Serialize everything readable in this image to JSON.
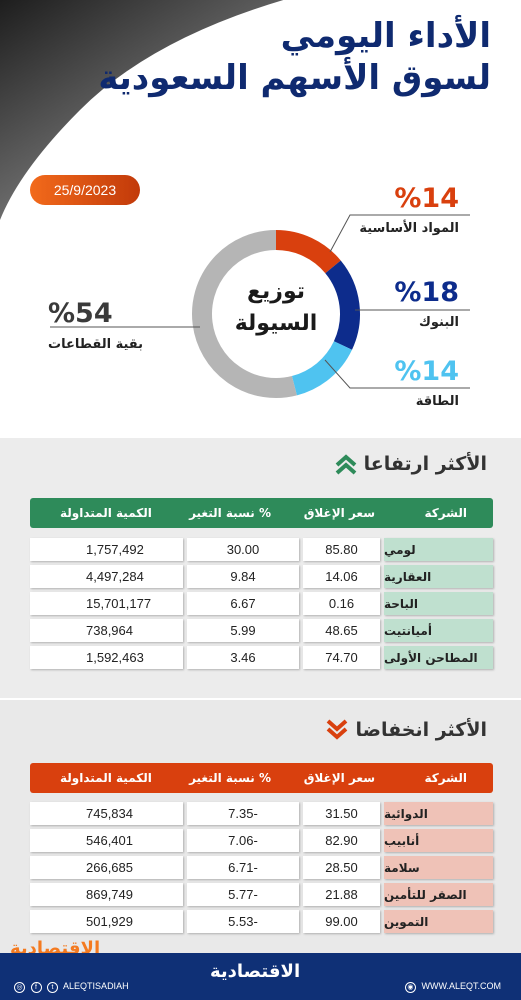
{
  "header": {
    "title_line1": "الأداء اليومي",
    "title_line2": "لسوق الأسهم السعودية",
    "date": "25/9/2023"
  },
  "distribution": {
    "center_line1": "توزيع",
    "center_line2": "السيولة",
    "segments": [
      {
        "label": "المواد الأساسية",
        "pct": "%14",
        "color": "#d9400e"
      },
      {
        "label": "البنوك",
        "pct": "%18",
        "color": "#0d2c8c"
      },
      {
        "label": "الطاقة",
        "pct": "%14",
        "color": "#4fc3f0"
      },
      {
        "label": "بقية القطاعات",
        "pct": "%54",
        "color": "#b5b5b5"
      }
    ]
  },
  "gainers": {
    "title": "الأكثر ارتفاعا",
    "header_color": "#2e8b5a",
    "columns": {
      "company": "الشركة",
      "close": "سعر الإغلاق",
      "change": "نسبة التغير %",
      "volume": "الكمية المتداولة"
    },
    "rows": [
      {
        "company": "لومي",
        "close": "85.80",
        "change": "30.00",
        "volume": "1,757,492"
      },
      {
        "company": "العقارية",
        "close": "14.06",
        "change": "9.84",
        "volume": "4,497,284"
      },
      {
        "company": "الباحة",
        "close": "0.16",
        "change": "6.67",
        "volume": "15,701,177"
      },
      {
        "company": "أميانتيت",
        "close": "48.65",
        "change": "5.99",
        "volume": "738,964"
      },
      {
        "company": "المطاحن الأولى",
        "close": "74.70",
        "change": "3.46",
        "volume": "1,592,463"
      }
    ]
  },
  "losers": {
    "title": "الأكثر انخفاضا",
    "header_color": "#d9400e",
    "columns": {
      "company": "الشركة",
      "close": "سعر الإغلاق",
      "change": "نسبة التغير %",
      "volume": "الكمية المتداولة"
    },
    "rows": [
      {
        "company": "الدوائية",
        "close": "31.50",
        "change": "7.35-",
        "volume": "745,834"
      },
      {
        "company": "أنابيب",
        "close": "82.90",
        "change": "7.06-",
        "volume": "546,401"
      },
      {
        "company": "سلامة",
        "close": "28.50",
        "change": "6.71-",
        "volume": "266,685"
      },
      {
        "company": "الصقر للتأمين",
        "close": "21.88",
        "change": "5.77-",
        "volume": "869,749"
      },
      {
        "company": "التموين",
        "close": "99.00",
        "change": "5.53-",
        "volume": "501,929"
      }
    ]
  },
  "footer": {
    "brand": "الاقتصادية",
    "social_handle": "ALEQTISADIAH",
    "website": "WWW.ALEQT.COM",
    "watermark": "الاقتصادية"
  }
}
